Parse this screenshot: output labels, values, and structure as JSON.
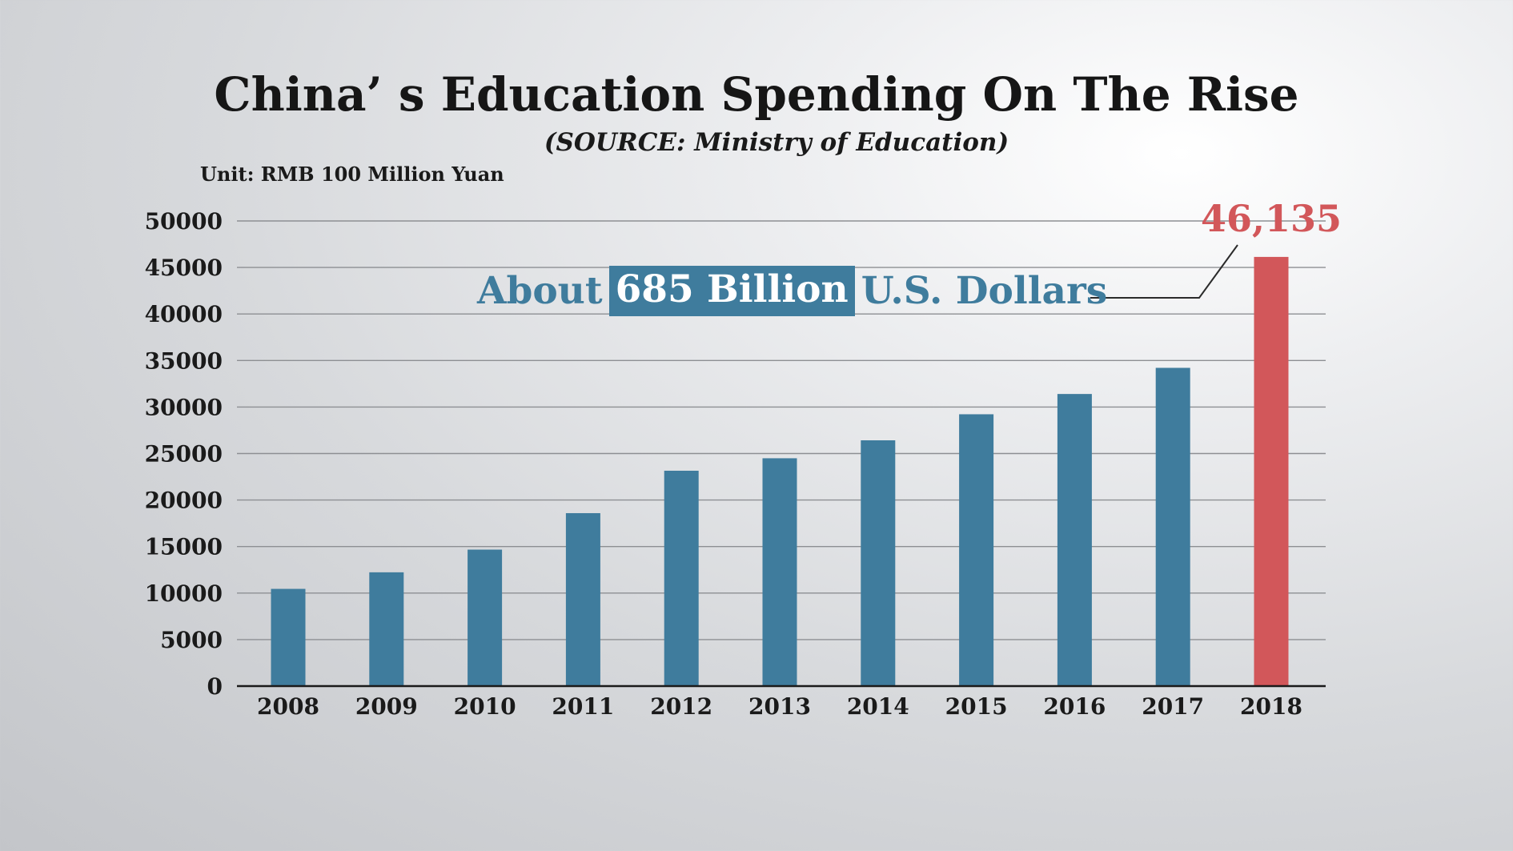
{
  "title": "China’ s Education Spending On The Rise",
  "subtitle": "(SOURCE: Ministry of Education)",
  "unit_label": "Unit: RMB 100 Million Yuan",
  "callout": {
    "prefix": "About",
    "highlight": "685 Billion",
    "suffix": "U.S. Dollars"
  },
  "highlight_value_label": "46,135",
  "colors": {
    "bar": "#3f7c9d",
    "highlight_bar": "#d2575a",
    "grid": "#8d8f93",
    "axis": "#1a1a1a"
  },
  "chart_data": {
    "type": "bar",
    "categories": [
      "2008",
      "2009",
      "2010",
      "2011",
      "2012",
      "2013",
      "2014",
      "2015",
      "2016",
      "2017",
      "2018"
    ],
    "values": [
      10450,
      12230,
      14670,
      18590,
      23150,
      24490,
      26420,
      29220,
      31400,
      34210,
      46135
    ],
    "highlight_category": "2018",
    "y_ticks": [
      "0",
      "5000",
      "10000",
      "15000",
      "20000",
      "25000",
      "30000",
      "35000",
      "40000",
      "45000",
      "50000"
    ],
    "ylim": [
      0,
      50000
    ],
    "grid": true,
    "title": "China’ s Education Spending On The Rise",
    "xlabel": "",
    "ylabel": ""
  }
}
